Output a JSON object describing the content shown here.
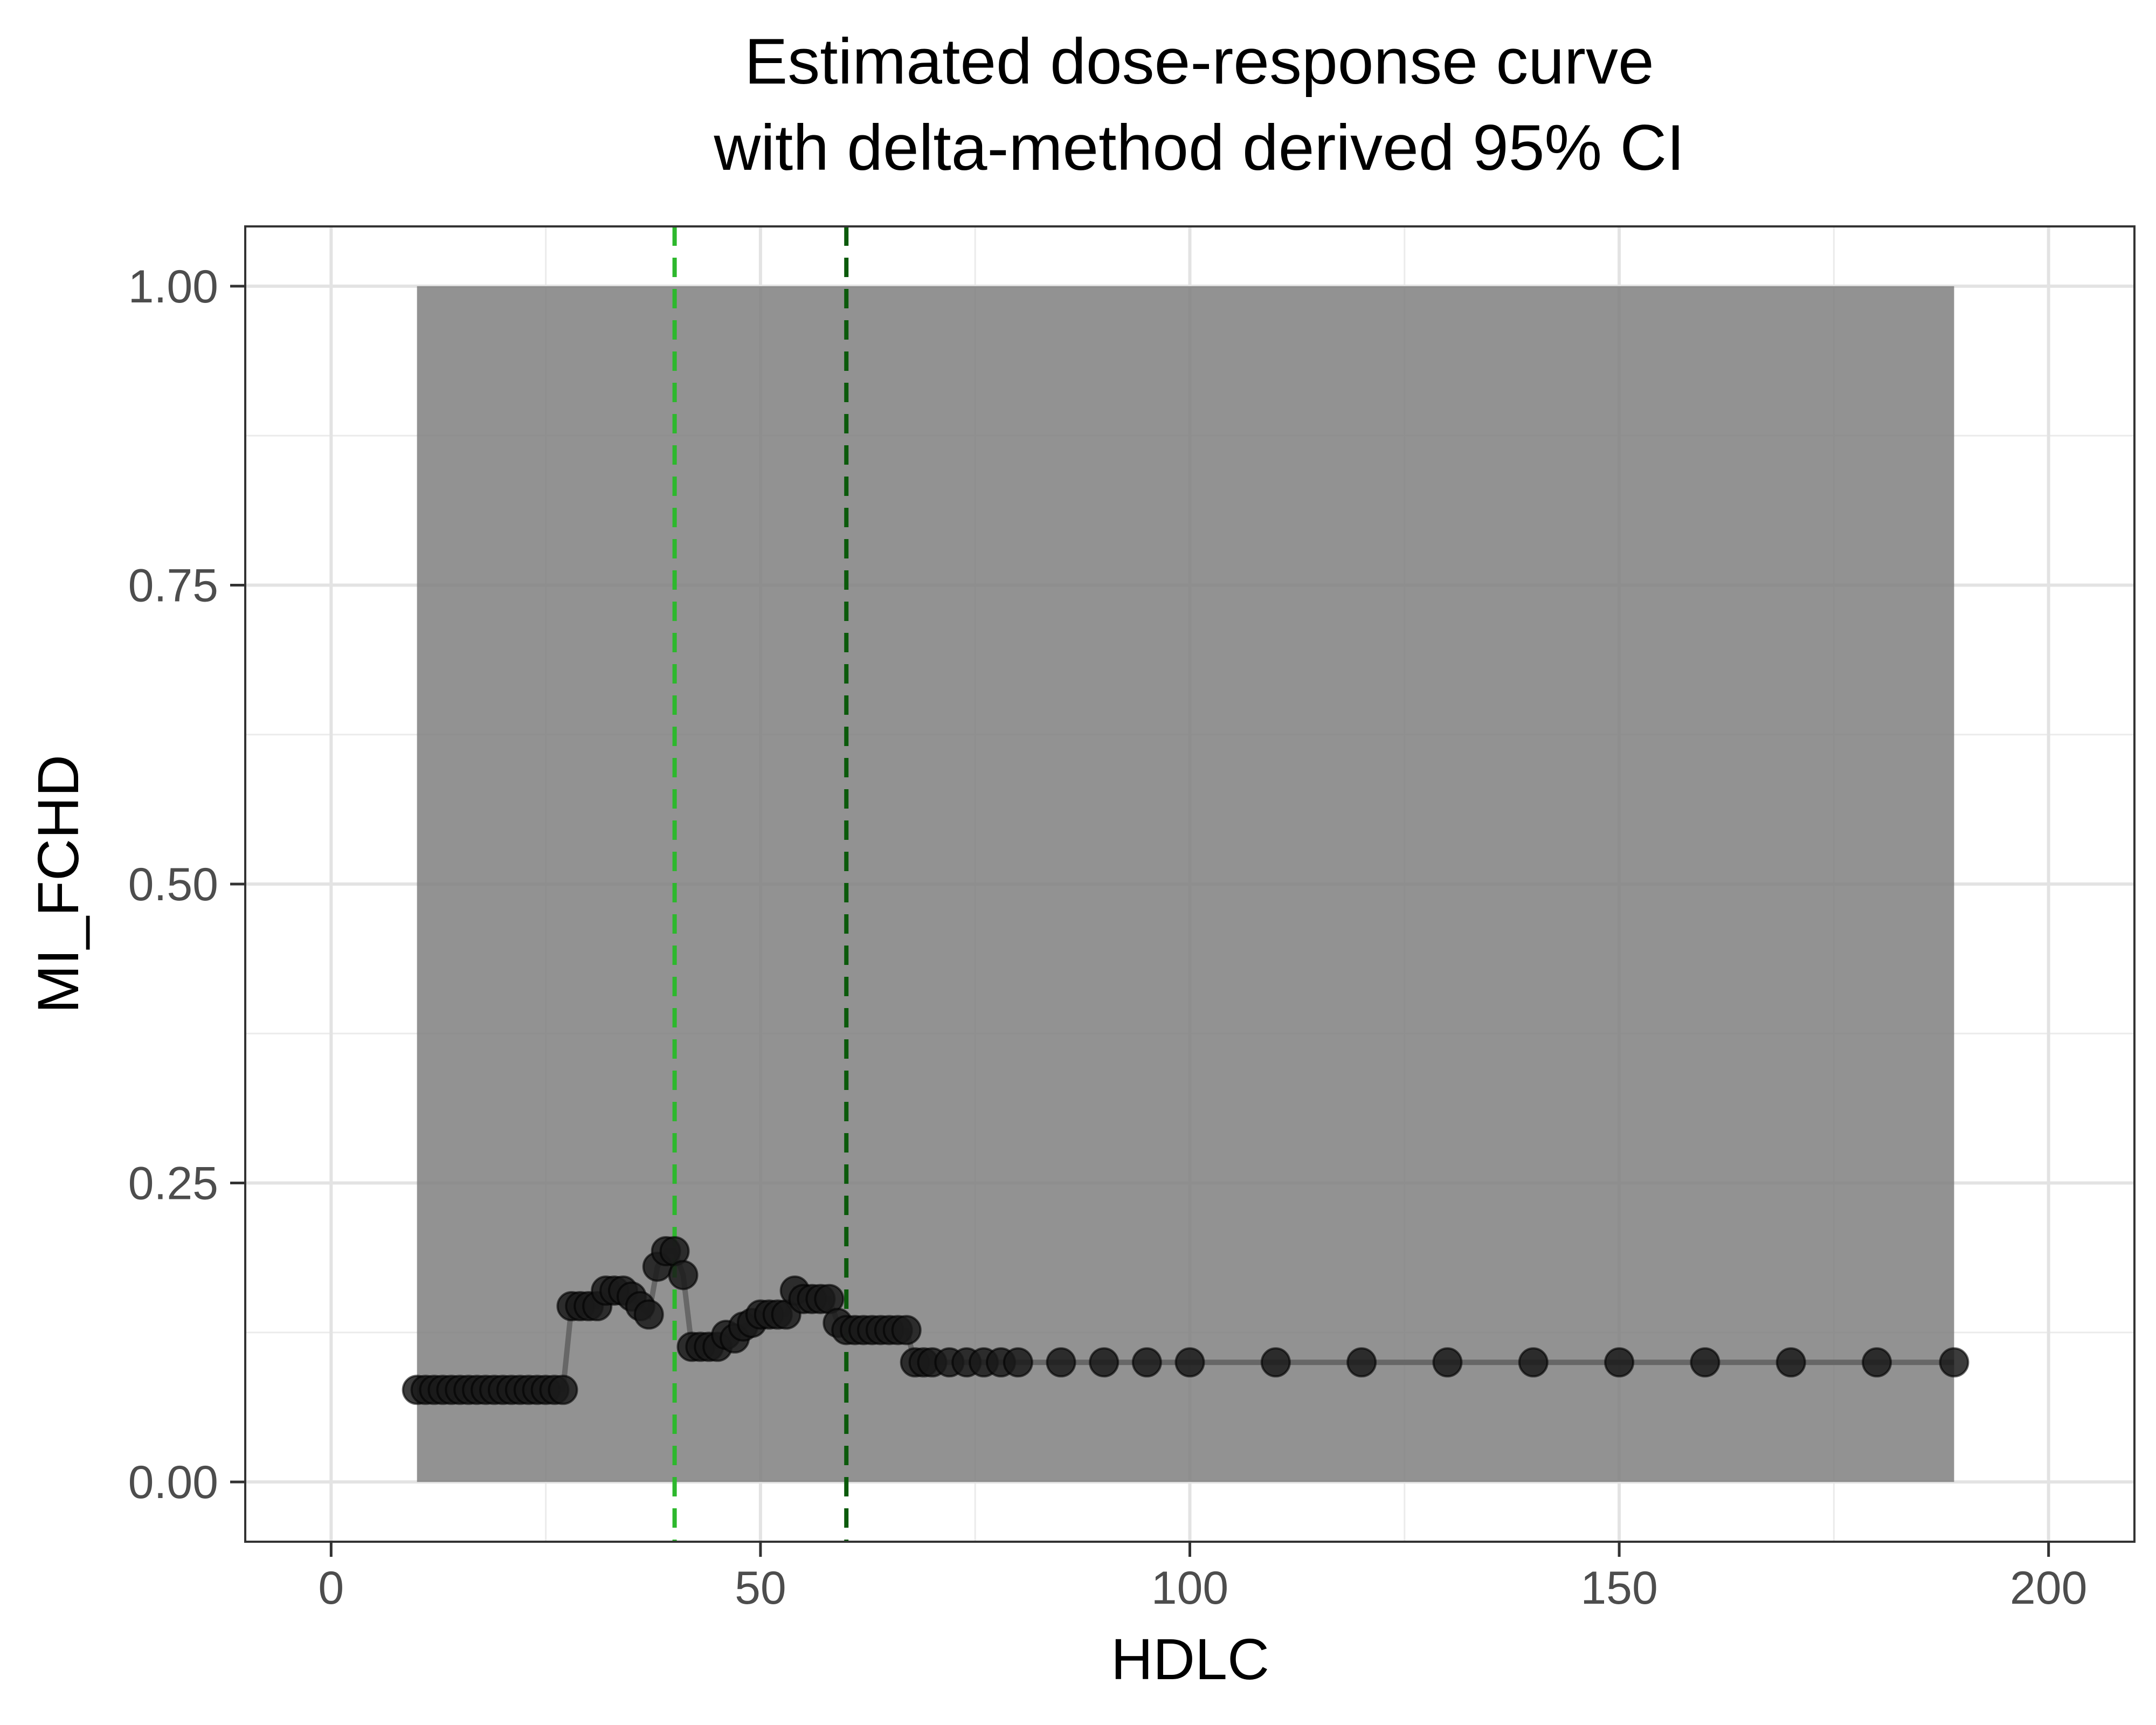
{
  "chart_data": {
    "type": "line",
    "title": "Estimated dose-response curve",
    "subtitle": "with delta-method derived 95% CI",
    "xlabel": "HDLC",
    "ylabel": "MI_FCHD",
    "xlim": [
      -10,
      210
    ],
    "ylim": [
      -0.05,
      1.05
    ],
    "x_ticks": [
      0,
      50,
      100,
      150,
      200
    ],
    "x_tick_labels": [
      "0",
      "50",
      "100",
      "150",
      "200"
    ],
    "y_ticks": [
      0,
      0.25,
      0.5,
      0.75,
      1
    ],
    "y_tick_labels": [
      "0.00",
      "0.25",
      "0.50",
      "0.75",
      "1.00"
    ],
    "grid": true,
    "ribbon": {
      "x_start": 10,
      "x_end": 189,
      "lower": 0.0,
      "upper": 1.0,
      "color": "#7f7f7f"
    },
    "reference_lines": [
      {
        "x": 40,
        "color": "#2db82d",
        "style": "dashed"
      },
      {
        "x": 60,
        "color": "#0b5a0b",
        "style": "dashed"
      }
    ],
    "series": [
      {
        "color": "#1a1a1a",
        "x": [
          10,
          11,
          12,
          13,
          14,
          15,
          16,
          17,
          18,
          19,
          20,
          21,
          22,
          23,
          24,
          25,
          26,
          27,
          28,
          29,
          30,
          31,
          32,
          33,
          34,
          35,
          36,
          37,
          38,
          39,
          40,
          41,
          42,
          43,
          44,
          45,
          46,
          47,
          48,
          49,
          50,
          51,
          52,
          53,
          54,
          55,
          56,
          57,
          58,
          59,
          60,
          61,
          62,
          63,
          64,
          65,
          66,
          67,
          68,
          69,
          70,
          72,
          74,
          76,
          78,
          80,
          85,
          90,
          95,
          100,
          110,
          120,
          130,
          140,
          150,
          160,
          170,
          180,
          189
        ],
        "y": [
          0.077,
          0.077,
          0.077,
          0.077,
          0.077,
          0.077,
          0.077,
          0.077,
          0.077,
          0.077,
          0.077,
          0.077,
          0.077,
          0.077,
          0.077,
          0.077,
          0.077,
          0.077,
          0.147,
          0.147,
          0.147,
          0.147,
          0.16,
          0.16,
          0.16,
          0.155,
          0.147,
          0.14,
          0.18,
          0.193,
          0.193,
          0.173,
          0.113,
          0.113,
          0.113,
          0.113,
          0.123,
          0.12,
          0.13,
          0.133,
          0.14,
          0.14,
          0.14,
          0.14,
          0.16,
          0.153,
          0.153,
          0.153,
          0.153,
          0.133,
          0.127,
          0.127,
          0.127,
          0.127,
          0.127,
          0.127,
          0.127,
          0.127,
          0.1,
          0.1,
          0.1,
          0.1,
          0.1,
          0.1,
          0.1,
          0.1,
          0.1,
          0.1,
          0.1,
          0.1,
          0.1,
          0.1,
          0.1,
          0.1,
          0.1,
          0.1,
          0.1,
          0.1,
          0.1
        ]
      }
    ]
  }
}
